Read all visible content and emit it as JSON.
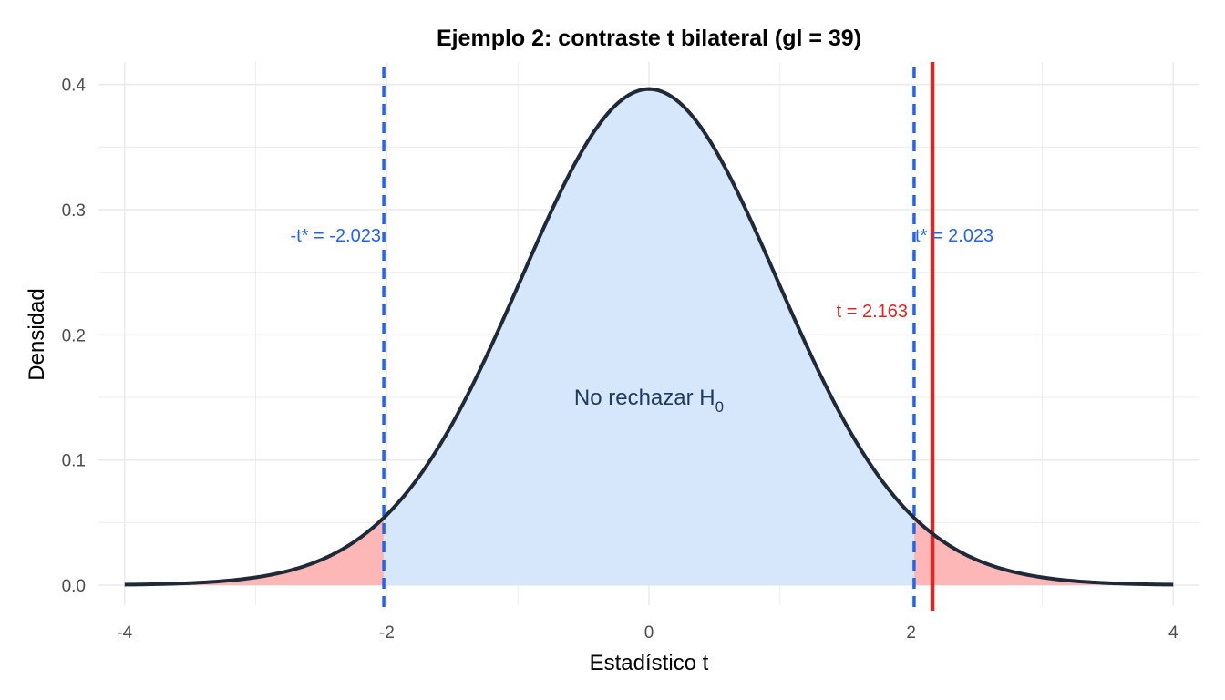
{
  "chart_data": {
    "type": "area",
    "title": "Ejemplo 2: contraste t bilateral (gl = 39)",
    "xlabel": "Estadístico t",
    "ylabel": "Densidad",
    "xlim": [
      -4,
      4
    ],
    "ylim": [
      0,
      0.4
    ],
    "x_ticks": [
      -4,
      -2,
      0,
      2,
      4
    ],
    "x_tick_labels": [
      "-4",
      "-2",
      "0",
      "2",
      "4"
    ],
    "y_ticks": [
      0.0,
      0.1,
      0.2,
      0.3,
      0.4
    ],
    "y_tick_labels": [
      "0.0",
      "0.1",
      "0.2",
      "0.3",
      "0.4"
    ],
    "grid": true,
    "distribution": "Student t",
    "df": 39,
    "critical_value": 2.023,
    "t_statistic": 2.163,
    "annotations": {
      "lower_critical": "-t* = -2.023",
      "upper_critical": "t* = 2.023",
      "t_observed": "t = 2.163",
      "region_text": "No rechazar H",
      "region_subscript": "0"
    },
    "colors": {
      "curve": "#1f2937",
      "accept_fill": "#d6e6fb",
      "reject_fill": "#fdb7b7",
      "critical_line": "#2563eb",
      "t_line": "#dc2626",
      "region_text": "#1e3a5f",
      "grid": "#ebebeb"
    }
  }
}
